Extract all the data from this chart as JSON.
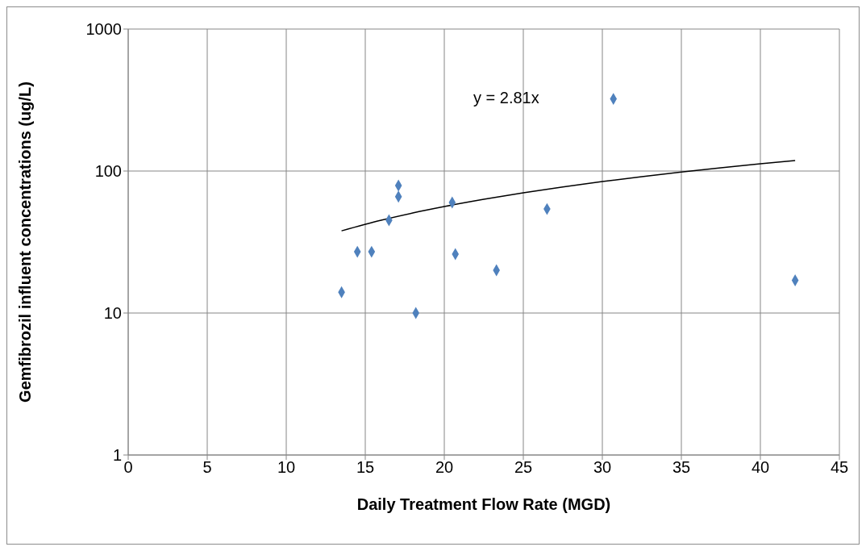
{
  "chart_data": {
    "type": "scatter",
    "xlabel": "Daily Treatment Flow Rate (MGD)",
    "ylabel": "Gemfibrozil influent concentrations (ug/L)",
    "log": "y",
    "grid": true,
    "legend": false,
    "marker": "diamond",
    "xlim": [
      0,
      45
    ],
    "xticks": [
      0,
      5,
      10,
      15,
      20,
      25,
      30,
      35,
      40,
      45
    ],
    "ylim": [
      1,
      1000
    ],
    "yticks": [
      1,
      10,
      100,
      1000
    ],
    "annotations": [
      "y = 2.81x"
    ],
    "series": [
      {
        "color": "#4f81bd",
        "x": [
          13.5,
          14.5,
          15.4,
          16.5,
          17.1,
          17.1,
          18.2,
          20.5,
          20.7,
          23.3,
          26.5,
          30.7,
          42.2
        ],
        "values": [
          14,
          27,
          27,
          45,
          79,
          66,
          10,
          60,
          26,
          20,
          54,
          322,
          17
        ]
      },
      {
        "type": "line",
        "color": "#000000",
        "marker": "none",
        "x": [
          13.5,
          16,
          18,
          20,
          22.5,
          25,
          27.5,
          30,
          32.5,
          35,
          37.5,
          40,
          42.2
        ],
        "values": [
          37.9,
          45,
          50.6,
          56.2,
          63.2,
          70.3,
          77.3,
          84.3,
          91.3,
          98.4,
          105.4,
          112.4,
          118.6
        ]
      }
    ]
  }
}
